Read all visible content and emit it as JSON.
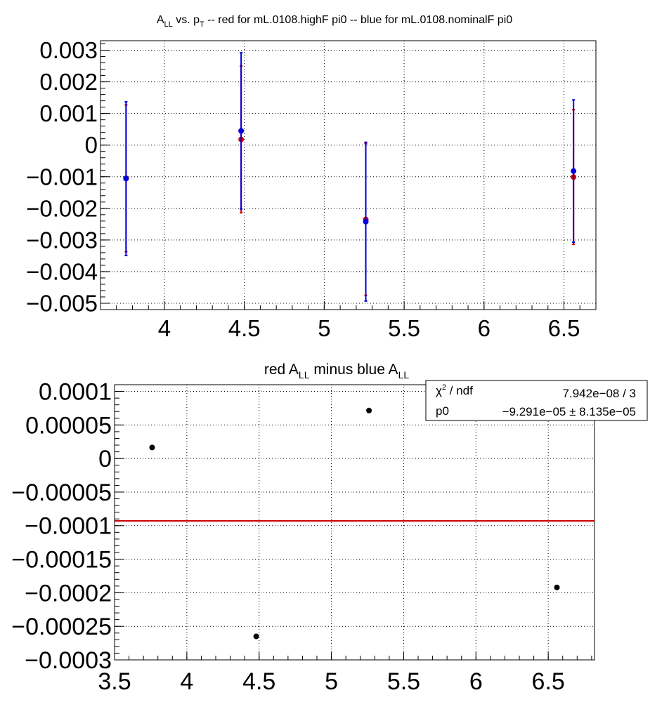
{
  "chart_data": [
    {
      "type": "scatter",
      "title": {
        "base": "A",
        "sub1": "LL",
        "mid": " vs. p",
        "sub2": "T",
        "rest": " -- red for mL.0108.highF pi0 -- blue for mL.0108.nominalF pi0"
      },
      "xlim": [
        3.6,
        6.7
      ],
      "ylim": [
        -0.0052,
        0.0033
      ],
      "x_ticks": [
        4,
        4.5,
        5,
        5.5,
        6,
        6.5
      ],
      "x_tick_labels": [
        "4",
        "4.5",
        "5",
        "5.5",
        "6",
        "6.5"
      ],
      "y_ticks": [
        0.003,
        0.002,
        0.001,
        0,
        -0.001,
        -0.002,
        -0.003,
        -0.004,
        -0.005
      ],
      "y_tick_labels": [
        "0.003",
        "0.002",
        "0.001",
        "0",
        "−0.001",
        "−0.002",
        "−0.003",
        "−0.004",
        "−0.005"
      ],
      "grid": true,
      "series": [
        {
          "color": "#d40000",
          "x": [
            3.76,
            4.48,
            5.26,
            6.56
          ],
          "y": [
            -0.00105,
            0.00018,
            -0.00235,
            -0.00101
          ],
          "err": [
            0.00232,
            0.00232,
            0.0024,
            0.00213
          ]
        },
        {
          "color": "#0000e0",
          "x": [
            3.76,
            4.48,
            5.26,
            6.56
          ],
          "y": [
            -0.00106,
            0.00045,
            -0.00242,
            -0.00082
          ],
          "err": [
            0.00243,
            0.00247,
            0.00251,
            0.00225
          ]
        }
      ]
    },
    {
      "type": "scatter",
      "title": {
        "pre": "red A",
        "sub1": "LL",
        "mid": " minus blue A",
        "sub2": "LL"
      },
      "xlim": [
        3.5,
        6.82
      ],
      "ylim": [
        -0.0003,
        0.00011
      ],
      "x_ticks": [
        3.5,
        4,
        4.5,
        5,
        5.5,
        6,
        6.5
      ],
      "x_tick_labels": [
        "3.5",
        "4",
        "4.5",
        "5",
        "5.5",
        "6",
        "6.5"
      ],
      "y_ticks": [
        0.0001,
        5e-05,
        0,
        -5e-05,
        -0.0001,
        -0.00015,
        -0.0002,
        -0.00025,
        -0.0003
      ],
      "y_tick_labels": [
        "0.0001",
        "0.00005",
        "0",
        "−0.00005",
        "−0.0001",
        "−0.00015",
        "−0.0002",
        "−0.00025",
        "−0.0003"
      ],
      "grid": true,
      "points": {
        "color": "#000000",
        "x": [
          3.76,
          4.48,
          5.26,
          6.56
        ],
        "y": [
          1.65e-05,
          -0.000265,
          7.15e-05,
          -0.000192
        ]
      },
      "fit": {
        "color": "#cc0000",
        "p0": -9.291e-05
      },
      "stats": {
        "chi2_label": "χ",
        "chi2_sup": "2",
        "ndf_label": " / ndf",
        "chi2_value": "7.942e−08 / 3",
        "p0_label": "p0",
        "p0_value": "−9.291e−05 ± 8.135e−05"
      }
    }
  ]
}
